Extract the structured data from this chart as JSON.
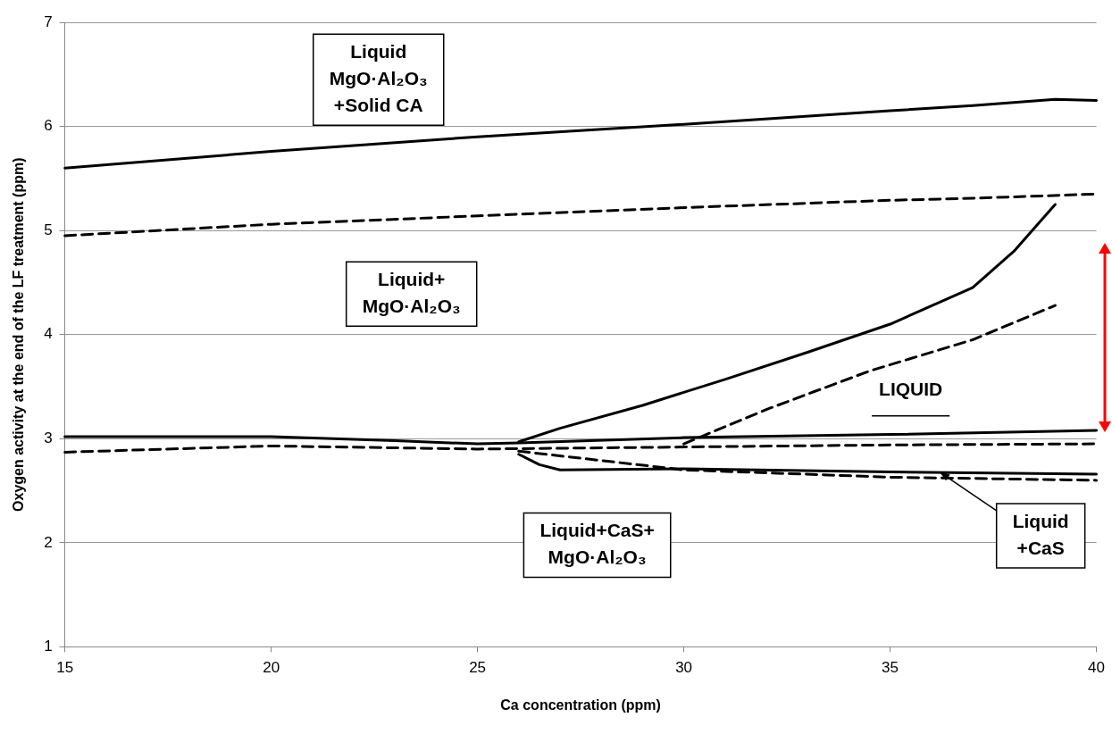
{
  "chart_data": {
    "type": "line",
    "xlabel": "Ca concentration (ppm)",
    "ylabel": "Oxygen activity at the end of the LF treatment (ppm)",
    "xlim": [
      15,
      40
    ],
    "ylim": [
      1,
      7
    ],
    "xticks": [
      15,
      20,
      25,
      30,
      35,
      40
    ],
    "yticks": [
      1,
      2,
      3,
      4,
      5,
      6,
      7
    ],
    "grid": "y",
    "marker": "none",
    "series": [
      {
        "color": "#000000",
        "line_style": "solid",
        "x": [
          15,
          20,
          25,
          30,
          35,
          37,
          39,
          40
        ],
        "values": [
          5.6,
          5.76,
          5.9,
          6.02,
          6.15,
          6.2,
          6.26,
          6.25
        ]
      },
      {
        "color": "#000000",
        "line_style": "dashed",
        "x": [
          15,
          20,
          25,
          30,
          35,
          37,
          40
        ],
        "values": [
          4.95,
          5.06,
          5.14,
          5.22,
          5.29,
          5.31,
          5.35
        ]
      },
      {
        "color": "#000000",
        "line_style": "solid",
        "x": [
          15,
          20,
          23,
          25,
          26,
          30,
          35,
          40
        ],
        "values": [
          3.02,
          3.02,
          2.98,
          2.95,
          2.96,
          3.01,
          3.04,
          3.08
        ]
      },
      {
        "color": "#000000",
        "line_style": "dashed",
        "x": [
          15,
          20,
          25,
          30,
          35,
          40
        ],
        "values": [
          2.87,
          2.93,
          2.9,
          2.92,
          2.94,
          2.95
        ]
      },
      {
        "color": "#000000",
        "line_style": "solid",
        "x": [
          26,
          27,
          29,
          31,
          33,
          35,
          37,
          38,
          39
        ],
        "values": [
          2.97,
          3.1,
          3.32,
          3.57,
          3.83,
          4.1,
          4.45,
          4.8,
          5.25
        ]
      },
      {
        "color": "#000000",
        "line_style": "dashed",
        "x": [
          30,
          32,
          34.5,
          37,
          39
        ],
        "values": [
          2.95,
          3.28,
          3.65,
          3.95,
          4.28
        ]
      },
      {
        "color": "#000000",
        "line_style": "solid",
        "x": [
          26,
          26.5,
          27,
          30,
          35,
          40
        ],
        "values": [
          2.85,
          2.75,
          2.7,
          2.71,
          2.68,
          2.66
        ]
      },
      {
        "color": "#000000",
        "line_style": "dashed",
        "x": [
          26,
          30,
          35,
          40
        ],
        "values": [
          2.88,
          2.7,
          2.63,
          2.6
        ]
      }
    ],
    "annotations": [
      "Liquid\nMgO·Al₂O₃\n+Solid CA",
      "Liquid+\nMgO·Al₂O₃",
      "LIQUID",
      "Liquid+CaS+\nMgO·Al₂O₃",
      {
        "text": "Liquid\n+CaS",
        "x": 36.2,
        "y": 2.68
      }
    ]
  }
}
